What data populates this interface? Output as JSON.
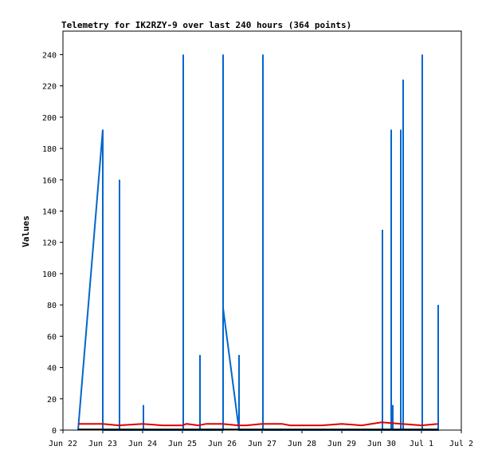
{
  "chart_data": {
    "type": "line",
    "title": "Telemetry for IK2RZY-9 over last 240 hours (364 points)",
    "xlabel": "",
    "ylabel": "Values",
    "ylim": [
      0,
      255
    ],
    "xlim": [
      0,
      10
    ],
    "y_ticks": [
      0,
      20,
      40,
      60,
      80,
      100,
      120,
      140,
      160,
      180,
      200,
      220,
      240
    ],
    "x_ticks": [
      {
        "x": 0,
        "label": "Jun 22"
      },
      {
        "x": 1,
        "label": "Jun 23"
      },
      {
        "x": 2,
        "label": "Jun 24"
      },
      {
        "x": 3,
        "label": "Jun 25"
      },
      {
        "x": 4,
        "label": "Jun 26"
      },
      {
        "x": 5,
        "label": "Jun 27"
      },
      {
        "x": 6,
        "label": "Jun 28"
      },
      {
        "x": 7,
        "label": "Jun 29"
      },
      {
        "x": 8,
        "label": "Jun 30"
      },
      {
        "x": 9,
        "label": "Jul 1"
      },
      {
        "x": 10,
        "label": "Jul 2"
      }
    ],
    "grid": false,
    "series": [
      {
        "color": "#0066cc",
        "points": [
          [
            0.38,
            0
          ],
          [
            1.0,
            192
          ],
          [
            1.0,
            0
          ],
          [
            1.0,
            0
          ],
          [
            1.42,
            0
          ],
          [
            1.42,
            160
          ],
          [
            1.42,
            0
          ],
          [
            2.02,
            0
          ],
          [
            2.02,
            16
          ],
          [
            2.02,
            0
          ],
          [
            3.02,
            0
          ],
          [
            3.02,
            240
          ],
          [
            3.02,
            0
          ],
          [
            3.44,
            0
          ],
          [
            3.44,
            48
          ],
          [
            3.44,
            0
          ],
          [
            4.02,
            0
          ],
          [
            4.02,
            240
          ],
          [
            4.02,
            78
          ],
          [
            4.42,
            0
          ],
          [
            4.42,
            48
          ],
          [
            4.42,
            0
          ],
          [
            5.02,
            0
          ],
          [
            5.02,
            240
          ],
          [
            5.02,
            0
          ],
          [
            8.02,
            0
          ],
          [
            8.02,
            128
          ],
          [
            8.02,
            0
          ],
          [
            8.24,
            0
          ],
          [
            8.24,
            192
          ],
          [
            8.24,
            0
          ],
          [
            8.28,
            0
          ],
          [
            8.28,
            16
          ],
          [
            8.28,
            0
          ],
          [
            8.48,
            0
          ],
          [
            8.48,
            192
          ],
          [
            8.48,
            0
          ],
          [
            8.54,
            0
          ],
          [
            8.54,
            224
          ],
          [
            8.54,
            0
          ],
          [
            9.02,
            0
          ],
          [
            9.02,
            240
          ],
          [
            9.02,
            0
          ],
          [
            9.42,
            0
          ],
          [
            9.42,
            80
          ],
          [
            9.42,
            0
          ]
        ]
      },
      {
        "color": "#dd0000",
        "points": [
          [
            0.38,
            4
          ],
          [
            1.0,
            4
          ],
          [
            1.4,
            3
          ],
          [
            2.0,
            4
          ],
          [
            2.5,
            3
          ],
          [
            3.0,
            3
          ],
          [
            3.1,
            4
          ],
          [
            3.4,
            3
          ],
          [
            3.6,
            4
          ],
          [
            4.0,
            4
          ],
          [
            4.4,
            3
          ],
          [
            4.6,
            3
          ],
          [
            5.0,
            4
          ],
          [
            5.5,
            4
          ],
          [
            5.7,
            3
          ],
          [
            6.0,
            3
          ],
          [
            6.5,
            3
          ],
          [
            7.0,
            4
          ],
          [
            7.5,
            3
          ],
          [
            8.0,
            5
          ],
          [
            8.5,
            4
          ],
          [
            9.0,
            3
          ],
          [
            9.42,
            4
          ]
        ]
      },
      {
        "color": "#000000",
        "points": [
          [
            0.38,
            0.4
          ],
          [
            9.42,
            0.4
          ]
        ]
      }
    ]
  }
}
